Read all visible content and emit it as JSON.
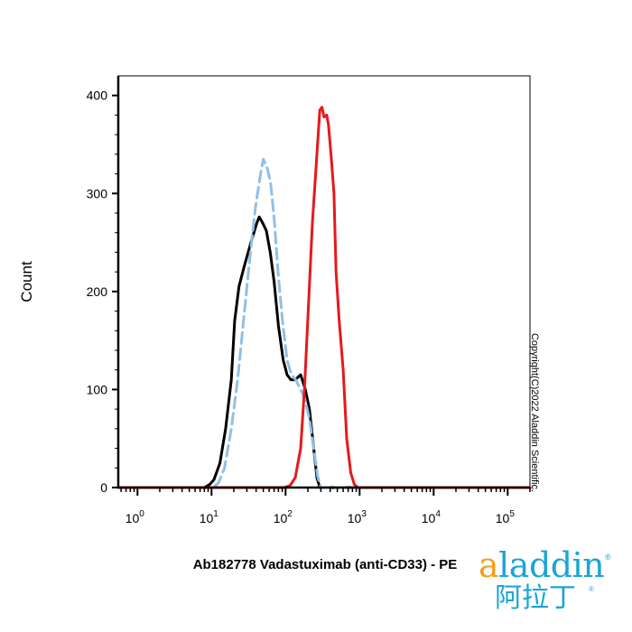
{
  "chart_data": {
    "type": "line",
    "title": "",
    "xlabel": "Ab182778 Vadastuximab (anti-CD33) - PE",
    "ylabel": "Count",
    "xscale": "log",
    "xlim": [
      0.55,
      200000
    ],
    "ylim": [
      0,
      420
    ],
    "x_ticks": [
      {
        "value": 1,
        "base": "10",
        "exp": "0"
      },
      {
        "value": 10,
        "base": "10",
        "exp": "1"
      },
      {
        "value": 100,
        "base": "10",
        "exp": "2"
      },
      {
        "value": 1000,
        "base": "10",
        "exp": "3"
      },
      {
        "value": 10000,
        "base": "10",
        "exp": "4"
      },
      {
        "value": 100000,
        "base": "10",
        "exp": "5"
      }
    ],
    "y_ticks": [
      {
        "value": 0,
        "label": "0"
      },
      {
        "value": 100,
        "label": "100"
      },
      {
        "value": 200,
        "label": "200"
      },
      {
        "value": 300,
        "label": "300"
      },
      {
        "value": 400,
        "label": "400"
      }
    ],
    "series": [
      {
        "color": "#000000",
        "dash": false,
        "points": [
          [
            0.55,
            0
          ],
          [
            8,
            0
          ],
          [
            9.4,
            3
          ],
          [
            10.8,
            8
          ],
          [
            13,
            25
          ],
          [
            15.5,
            60
          ],
          [
            18.5,
            110
          ],
          [
            20.5,
            170
          ],
          [
            23.5,
            205
          ],
          [
            27.5,
            225
          ],
          [
            34,
            250
          ],
          [
            41,
            270
          ],
          [
            44,
            276
          ],
          [
            49,
            270
          ],
          [
            55,
            262
          ],
          [
            62,
            240
          ],
          [
            70,
            210
          ],
          [
            80,
            165
          ],
          [
            93,
            130
          ],
          [
            105,
            115
          ],
          [
            118,
            110
          ],
          [
            135,
            110
          ],
          [
            160,
            115
          ],
          [
            185,
            100
          ],
          [
            210,
            80
          ],
          [
            240,
            40
          ],
          [
            265,
            10
          ],
          [
            290,
            0
          ],
          [
            200000,
            0
          ]
        ]
      },
      {
        "color": "#8fc0e8",
        "dash": true,
        "points": [
          [
            0.55,
            0
          ],
          [
            10.5,
            0
          ],
          [
            12.5,
            5
          ],
          [
            15,
            20
          ],
          [
            18.5,
            60
          ],
          [
            22.5,
            110
          ],
          [
            27,
            170
          ],
          [
            33,
            235
          ],
          [
            39,
            285
          ],
          [
            46,
            320
          ],
          [
            50,
            335
          ],
          [
            57,
            325
          ],
          [
            63,
            310
          ],
          [
            70,
            275
          ],
          [
            80,
            215
          ],
          [
            91,
            170
          ],
          [
            105,
            130
          ],
          [
            120,
            115
          ],
          [
            137,
            110
          ],
          [
            160,
            100
          ],
          [
            183,
            90
          ],
          [
            210,
            70
          ],
          [
            240,
            40
          ],
          [
            270,
            12
          ],
          [
            300,
            0
          ],
          [
            200000,
            0
          ]
        ]
      },
      {
        "color": "#e41a1c",
        "dash": false,
        "points": [
          [
            0.55,
            0
          ],
          [
            95,
            0
          ],
          [
            115,
            2
          ],
          [
            135,
            10
          ],
          [
            160,
            40
          ],
          [
            180,
            100
          ],
          [
            205,
            190
          ],
          [
            230,
            270
          ],
          [
            260,
            330
          ],
          [
            290,
            385
          ],
          [
            310,
            388
          ],
          [
            330,
            378
          ],
          [
            360,
            380
          ],
          [
            380,
            370
          ],
          [
            410,
            340
          ],
          [
            450,
            300
          ],
          [
            480,
            220
          ],
          [
            530,
            170
          ],
          [
            600,
            120
          ],
          [
            670,
            50
          ],
          [
            760,
            15
          ],
          [
            850,
            3
          ],
          [
            950,
            0
          ],
          [
            200000,
            0
          ]
        ]
      }
    ],
    "copyright": "Copyright(C)2022 Aladdin Scientific.",
    "logo": {
      "latin_first": "a",
      "latin_rest": "laddin",
      "chinese": "阿拉丁",
      "reg": "®"
    }
  }
}
